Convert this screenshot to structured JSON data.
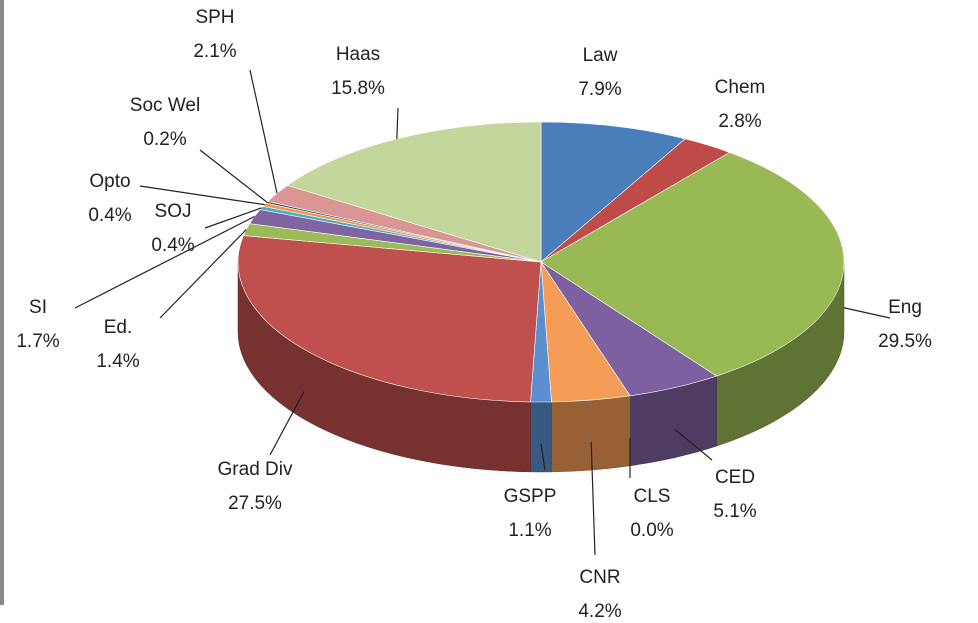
{
  "chart_data": {
    "type": "pie",
    "categories": [
      "Law",
      "Chem",
      "Eng",
      "CED",
      "CLS",
      "CNR",
      "GSPP",
      "Grad Div",
      "Ed.",
      "SI",
      "SOJ",
      "Opto",
      "Soc Wel",
      "SPH",
      "Haas"
    ],
    "values": [
      7.9,
      2.8,
      29.5,
      5.1,
      0.0,
      4.2,
      1.1,
      27.5,
      1.4,
      1.7,
      0.4,
      0.4,
      0.2,
      2.1,
      15.8
    ],
    "value_labels": [
      "7.9%",
      "2.8%",
      "29.5%",
      "5.1%",
      "0.0%",
      "4.2%",
      "1.1%",
      "27.5%",
      "1.4%",
      "1.7%",
      "0.4%",
      "0.4%",
      "0.2%",
      "2.1%",
      "15.8%"
    ],
    "colors": [
      "#4a7ebb",
      "#be4b48",
      "#98b954",
      "#7d60a0",
      "#46aac5",
      "#f59d56",
      "#5b8fd0",
      "#c0504d",
      "#9bbb59",
      "#8064a2",
      "#4bacc6",
      "#f79646",
      "#2c4d75",
      "#d99694",
      "#c3d69b"
    ]
  }
}
